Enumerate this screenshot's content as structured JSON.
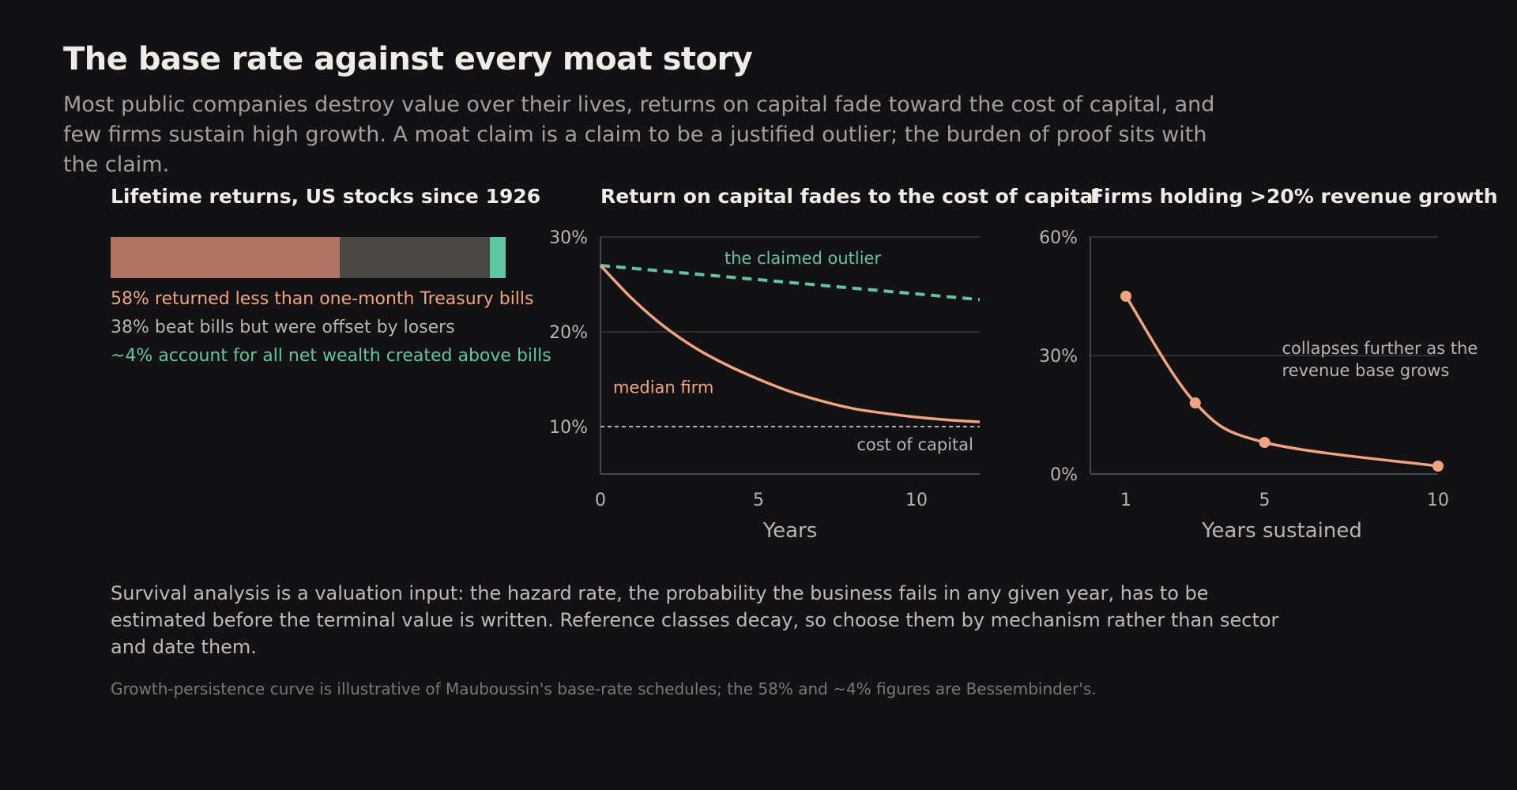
{
  "title": "The base rate against every moat story",
  "subtitle": "Most public companies destroy value over their lives, returns on capital fade toward the cost of capital, and few firms sustain high growth. A moat claim is a claim to be a justified outlier; the burden of proof sits with the claim.",
  "body_text": "Survival analysis is a valuation input: the hazard rate, the probability the business fails in any given year, has to be estimated before the terminal value is written. Reference classes decay, so choose them by mechanism rather than sector and date them.",
  "footnote": "Growth-persistence curve is illustrative of Mauboussin's base-rate schedules; the 58% and ~4% figures are Bessembinder's.",
  "colors": {
    "background": "#121214",
    "loser": "#b07462",
    "middle": "#4a4845",
    "winner": "#5ec6a0",
    "orange": "#f0a57c",
    "teal": "#5ec6a0",
    "axis": "#5a5854"
  },
  "chart_data": [
    {
      "type": "bar",
      "orientation": "horizontal-stacked",
      "title": "Lifetime returns, US stocks since 1926",
      "segments": [
        {
          "label": "58% returned less than one-month Treasury bills",
          "value": 58,
          "color": "#b07462",
          "text_color": "#f0a57c"
        },
        {
          "label": "38% beat bills but were offset by losers",
          "value": 38,
          "color": "#4a4845",
          "text_color": "#b8b5b0"
        },
        {
          "label": "~4% account for all net wealth created above bills",
          "value": 4,
          "color": "#5ec6a0",
          "text_color": "#5ec6a0"
        }
      ]
    },
    {
      "type": "line",
      "title": "Return on capital fades to the cost of capital",
      "xlabel": "Years",
      "ylabel": "",
      "xlim": [
        0,
        12
      ],
      "ylim": [
        5,
        30
      ],
      "x_ticks": [
        0,
        5,
        10
      ],
      "y_ticks": [
        10,
        20,
        30
      ],
      "y_tick_labels": [
        "10%",
        "20%",
        "30%"
      ],
      "grid": "horizontal",
      "series": [
        {
          "name": "the claimed outlier",
          "style": "dashed",
          "color": "#5ec6a0",
          "x": [
            0,
            12
          ],
          "y": [
            27,
            23.4
          ]
        },
        {
          "name": "median firm",
          "style": "solid",
          "color": "#f0a57c",
          "x": [
            0,
            1,
            2,
            3,
            4,
            5,
            6,
            7,
            8,
            9,
            10,
            11,
            12
          ],
          "y": [
            27,
            23.5,
            20.6,
            18.3,
            16.5,
            15.0,
            13.7,
            12.7,
            11.9,
            11.4,
            11.0,
            10.7,
            10.5
          ]
        },
        {
          "name": "cost of capital",
          "style": "dotted",
          "color": "#e8e6e3",
          "x": [
            0,
            12
          ],
          "y": [
            10,
            10
          ]
        }
      ]
    },
    {
      "type": "line",
      "title": "Firms holding >20% revenue growth",
      "xlabel": "Years sustained",
      "ylabel": "",
      "xlim": [
        0,
        10
      ],
      "ylim": [
        0,
        60
      ],
      "x_ticks": [
        1,
        5,
        10
      ],
      "y_ticks": [
        0,
        30,
        60
      ],
      "y_tick_labels": [
        "0%",
        "30%",
        "60%"
      ],
      "grid": "horizontal",
      "series": [
        {
          "name": "",
          "color": "#f0a57c",
          "markers": true,
          "x": [
            1,
            3,
            5,
            10
          ],
          "y": [
            45,
            18,
            8,
            2
          ]
        }
      ],
      "annotation": "collapses further as the revenue base grows"
    }
  ]
}
